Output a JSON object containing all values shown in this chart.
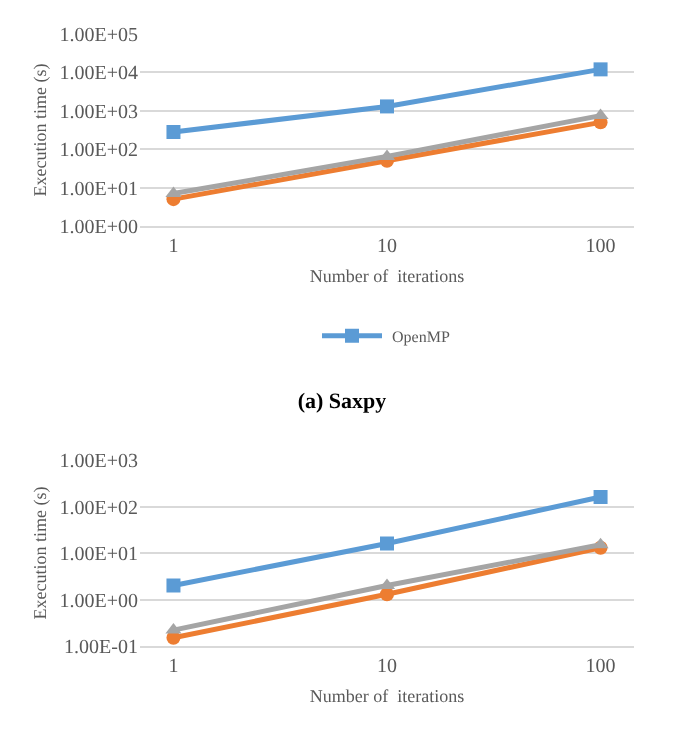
{
  "chart_data": [
    {
      "type": "line",
      "categories": [
        "1",
        "10",
        "100"
      ],
      "xlabel": "Number of  iterations",
      "ylabel": "Execution time (s)",
      "log": true,
      "ylim": [
        1,
        100000
      ],
      "yticks": [
        {
          "value": 1,
          "label": "1.00E+00"
        },
        {
          "value": 10,
          "label": "1.00E+01"
        },
        {
          "value": 100,
          "label": "1.00E+02"
        },
        {
          "value": 1000,
          "label": "1.00E+03"
        },
        {
          "value": 10000,
          "label": "1.00E+04"
        },
        {
          "value": 100000,
          "label": "1.00E+05"
        }
      ],
      "grid": "y",
      "legend": "bottom",
      "annotations": [
        "(a) Saxpy"
      ],
      "series": [
        {
          "name": "OpenMP",
          "color": "#5b9bd5",
          "marker": "square",
          "values": [
            280,
            1300,
            12000
          ]
        },
        {
          "color": "#ed7d31",
          "marker": "circle",
          "values": [
            5,
            50,
            500
          ]
        },
        {
          "color": "#a5a5a5",
          "marker": "triangle",
          "values": [
            7,
            65,
            750
          ]
        }
      ]
    },
    {
      "type": "line",
      "categories": [
        "1",
        "10",
        "100"
      ],
      "xlabel": "Number of  iterations",
      "ylabel": "Execution time (s)",
      "log": true,
      "ylim": [
        0.1,
        1000
      ],
      "yticks": [
        {
          "value": 0.1,
          "label": "1.00E-01"
        },
        {
          "value": 1,
          "label": "1.00E+00"
        },
        {
          "value": 10,
          "label": "1.00E+01"
        },
        {
          "value": 100,
          "label": "1.00E+02"
        },
        {
          "value": 1000,
          "label": "1.00E+03"
        }
      ],
      "grid": "y",
      "series": [
        {
          "color": "#5b9bd5",
          "marker": "square",
          "values": [
            2,
            16,
            160
          ]
        },
        {
          "color": "#ed7d31",
          "marker": "circle",
          "values": [
            0.15,
            1.3,
            13
          ]
        },
        {
          "color": "#a5a5a5",
          "marker": "triangle",
          "values": [
            0.22,
            2,
            15
          ]
        }
      ]
    }
  ]
}
